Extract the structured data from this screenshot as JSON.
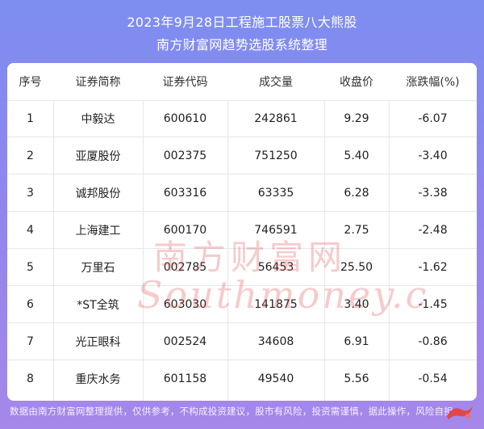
{
  "header": {
    "title": "2023年9月28日工程施工股票八大熊股",
    "subtitle": "南方财富网趋势选股系统整理"
  },
  "table": {
    "columns": [
      "序号",
      "证券简称",
      "证券代码",
      "成交量",
      "收盘价",
      "涨跌幅(%)"
    ],
    "rows": [
      [
        "1",
        "中毅达",
        "600610",
        "242861",
        "9.29",
        "-6.07"
      ],
      [
        "2",
        "亚厦股份",
        "002375",
        "751250",
        "5.40",
        "-3.40"
      ],
      [
        "3",
        "诚邦股份",
        "603316",
        "63335",
        "6.28",
        "-3.38"
      ],
      [
        "4",
        "上海建工",
        "600170",
        "746591",
        "2.75",
        "-2.48"
      ],
      [
        "5",
        "万里石",
        "002785",
        "56453",
        "25.50",
        "-1.62"
      ],
      [
        "6",
        "*ST全筑",
        "603030",
        "141875",
        "3.40",
        "-1.45"
      ],
      [
        "7",
        "光正眼科",
        "002524",
        "34608",
        "6.91",
        "-0.86"
      ],
      [
        "8",
        "重庆水务",
        "601158",
        "49540",
        "5.56",
        "-0.54"
      ]
    ]
  },
  "watermark": {
    "text_cn": "南方财富网",
    "text_en": "Southmoney.com"
  },
  "footer": {
    "disclaimer": "数据由南方财富网整理提供，仅供参考，不构成投资建议，股市有风险，投资需谨慎，据此操作，风险自担。"
  },
  "colors": {
    "header_text": "#ffffff",
    "watermark": "#f0a0a0",
    "logo": "#e04848"
  }
}
